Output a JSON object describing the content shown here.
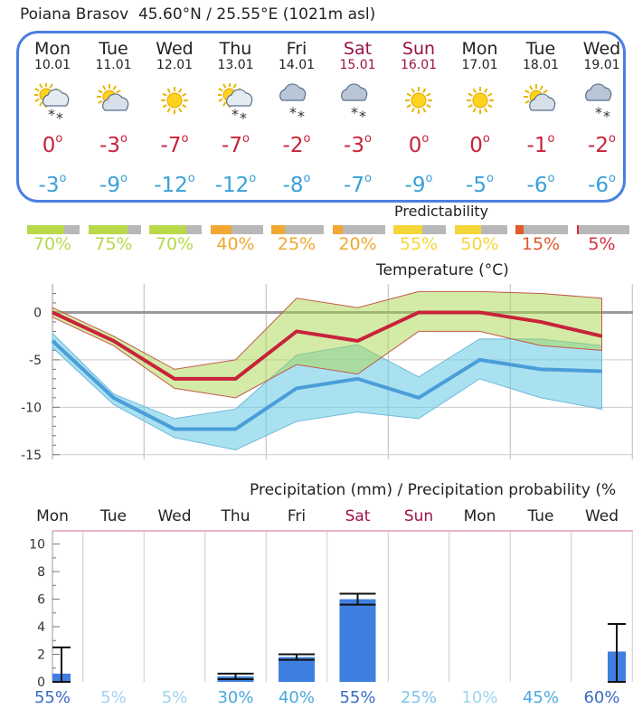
{
  "location": "Poiana Brasov",
  "coords": "45.60°N / 25.55°E (1021m asl)",
  "days": [
    {
      "name": "Mon",
      "date": "10.01",
      "icon": "sun-cloud-snow-icon",
      "tmax": "0",
      "tmin": "-3",
      "weekend": false
    },
    {
      "name": "Tue",
      "date": "11.01",
      "icon": "sun-cloud-icon",
      "tmax": "-3",
      "tmin": "-9",
      "weekend": false
    },
    {
      "name": "Wed",
      "date": "12.01",
      "icon": "sun-icon",
      "tmax": "-7",
      "tmin": "-12",
      "weekend": false
    },
    {
      "name": "Thu",
      "date": "13.01",
      "icon": "sun-cloud-snow-icon",
      "tmax": "-7",
      "tmin": "-12",
      "weekend": false
    },
    {
      "name": "Fri",
      "date": "14.01",
      "icon": "cloud-snow-icon",
      "tmax": "-2",
      "tmin": "-8",
      "weekend": false
    },
    {
      "name": "Sat",
      "date": "15.01",
      "icon": "cloud-snow-icon",
      "tmax": "-3",
      "tmin": "-7",
      "weekend": true
    },
    {
      "name": "Sun",
      "date": "16.01",
      "icon": "sun-icon",
      "tmax": "0",
      "tmin": "-9",
      "weekend": true
    },
    {
      "name": "Mon",
      "date": "17.01",
      "icon": "sun-icon",
      "tmax": "0",
      "tmin": "-5",
      "weekend": false
    },
    {
      "name": "Tue",
      "date": "18.01",
      "icon": "sun-cloud-icon",
      "tmax": "-1",
      "tmin": "-6",
      "weekend": false
    },
    {
      "name": "Wed",
      "date": "19.01",
      "icon": "cloud-snow-icon",
      "tmax": "-2",
      "tmin": "-6",
      "weekend": false
    }
  ],
  "degree_symbol": "o",
  "predictability": {
    "title": "Predictability",
    "items": [
      {
        "value": "70%",
        "pct": 70,
        "color": "#b8d94a"
      },
      {
        "value": "75%",
        "pct": 75,
        "color": "#b8d94a"
      },
      {
        "value": "70%",
        "pct": 70,
        "color": "#b8d94a"
      },
      {
        "value": "40%",
        "pct": 40,
        "color": "#f0a830"
      },
      {
        "value": "25%",
        "pct": 25,
        "color": "#f0a830"
      },
      {
        "value": "20%",
        "pct": 20,
        "color": "#f0a830"
      },
      {
        "value": "55%",
        "pct": 55,
        "color": "#f5d63a"
      },
      {
        "value": "50%",
        "pct": 50,
        "color": "#f5d63a"
      },
      {
        "value": "15%",
        "pct": 15,
        "color": "#e05a2a"
      },
      {
        "value": "5%",
        "pct": 5,
        "color": "#d42f3a"
      }
    ]
  },
  "colors": {
    "max": "#c8233a",
    "min": "#3aa0d9",
    "accent": "#4b7fe3",
    "weekend": "#9b1146"
  },
  "chart_data": [
    {
      "type": "line",
      "title": "Temperature (°C)",
      "categories": [
        "Mon",
        "Tue",
        "Wed",
        "Thu",
        "Fri",
        "Sat",
        "Sun",
        "Mon",
        "Tue",
        "Wed"
      ],
      "yticks": [
        "0",
        "-5",
        "-10",
        "-15"
      ],
      "ylim": [
        -15.5,
        3
      ],
      "series": [
        {
          "name": "max",
          "values": [
            0,
            -3,
            -7,
            -7,
            -2,
            -3,
            0,
            0,
            -1,
            -2.5
          ],
          "band_low": [
            -0.5,
            -3.5,
            -8,
            -9,
            -5.5,
            -6.5,
            -2,
            -2,
            -3.5,
            -4
          ],
          "band_high": [
            0.5,
            -2.5,
            -6,
            -5,
            1.5,
            0.5,
            2.2,
            2.2,
            2,
            1.5
          ]
        },
        {
          "name": "min",
          "values": [
            -3,
            -9,
            -12.3,
            -12.3,
            -8,
            -7,
            -9,
            -5,
            -6,
            -6.2
          ],
          "band_low": [
            -3.7,
            -9.7,
            -13.2,
            -14.5,
            -11.5,
            -10.5,
            -11.2,
            -7,
            -9,
            -10.2
          ],
          "band_high": [
            -2.2,
            -8.6,
            -11.2,
            -10.2,
            -4.5,
            -3.4,
            -6.8,
            -2.8,
            -2.8,
            -3.5
          ]
        }
      ],
      "grid": true
    },
    {
      "type": "bar",
      "title": "Precipitation (mm) / Precipitation probability (%",
      "categories": [
        "Mon",
        "Tue",
        "Wed",
        "Thu",
        "Fri",
        "Sat",
        "Sun",
        "Mon",
        "Tue",
        "Wed"
      ],
      "values": [
        0.6,
        0,
        0,
        0.4,
        1.8,
        6,
        0,
        0,
        0,
        2.2
      ],
      "err_low": [
        0,
        0,
        0,
        0.2,
        1.6,
        5.6,
        0,
        0,
        0,
        0
      ],
      "err_high": [
        2.5,
        0,
        0,
        0.6,
        2,
        6.4,
        0,
        0,
        0,
        4.2
      ],
      "probabilities": [
        "55%",
        "5%",
        "5%",
        "30%",
        "40%",
        "55%",
        "25%",
        "10%",
        "45%",
        "60%"
      ],
      "prob_colors": [
        "#3a6cc4",
        "#9fd4ee",
        "#9fd4ee",
        "#4aa8dc",
        "#4aa8dc",
        "#3a6cc4",
        "#7fc3e8",
        "#9fd4ee",
        "#4aa8dc",
        "#3a6cc4"
      ],
      "yticks": [
        "0",
        "2",
        "4",
        "6",
        "8",
        "10"
      ],
      "ylim": [
        0,
        10.5
      ],
      "grid": true
    }
  ]
}
